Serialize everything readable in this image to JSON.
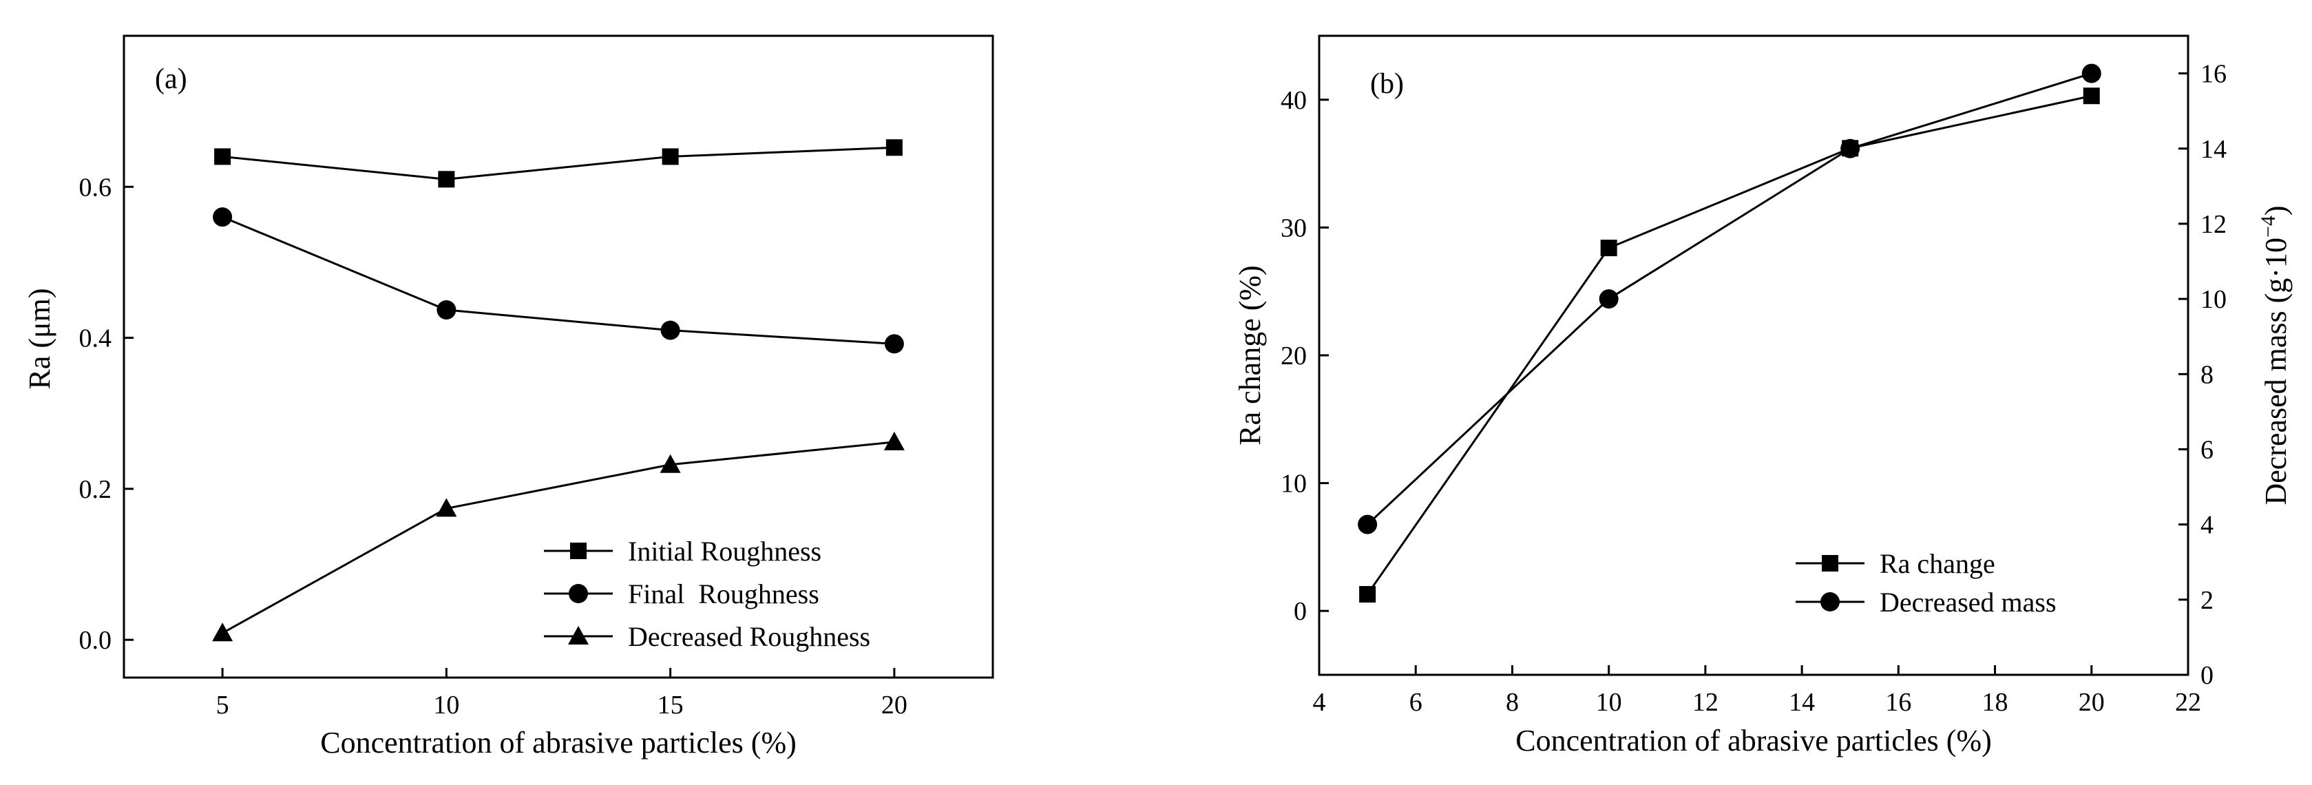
{
  "chart_data": [
    {
      "panel": "(a)",
      "type": "line",
      "title": "",
      "xlabel": "Concentration of abrasive particles (%)",
      "ylabel": "Ra (μm)",
      "x": [
        5,
        10,
        15,
        20
      ],
      "xlim": [
        2.8,
        22.2
      ],
      "ylim": [
        -0.05,
        0.8
      ],
      "xticks": [
        5,
        10,
        15,
        20
      ],
      "yticks": [
        0.0,
        0.2,
        0.4,
        0.6
      ],
      "ytick_labels": [
        "0.0",
        "0.2",
        "0.4",
        "0.6"
      ],
      "legend_position": "bottom-right",
      "series": [
        {
          "name": "Initial Roughness",
          "marker": "square",
          "values": [
            0.64,
            0.61,
            0.64,
            0.652
          ]
        },
        {
          "name": "Final  Roughness",
          "marker": "circle",
          "values": [
            0.56,
            0.437,
            0.41,
            0.392
          ]
        },
        {
          "name": "Decreased Roughness",
          "marker": "triangle",
          "values": [
            0.009,
            0.174,
            0.232,
            0.262
          ]
        }
      ]
    },
    {
      "panel": "(b)",
      "type": "line",
      "title": "",
      "xlabel": "Concentration of abrasive particles (%)",
      "ylabel": "Ra  change (%)",
      "y2label": "Decreased mass (g·10",
      "y2label_sup": "−4",
      "y2label_close": ")",
      "xlim": [
        4,
        22
      ],
      "ylim": [
        -5,
        45
      ],
      "y2lim": [
        0,
        17
      ],
      "xticks": [
        4,
        6,
        8,
        10,
        12,
        14,
        16,
        18,
        20,
        22
      ],
      "yticks": [
        0,
        10,
        20,
        30,
        40
      ],
      "y2ticks": [
        0,
        2,
        4,
        6,
        8,
        10,
        12,
        14,
        16
      ],
      "legend_position": "bottom-right",
      "series": [
        {
          "name": "Ra change",
          "axis": "left",
          "marker": "square",
          "x": [
            5,
            10,
            15,
            20
          ],
          "values": [
            1.3,
            28.4,
            36.2,
            40.3
          ]
        },
        {
          "name": "Decreased mass",
          "axis": "right",
          "marker": "circle",
          "x": [
            5,
            10,
            15,
            20
          ],
          "values": [
            4,
            10,
            14,
            16
          ]
        }
      ]
    }
  ]
}
